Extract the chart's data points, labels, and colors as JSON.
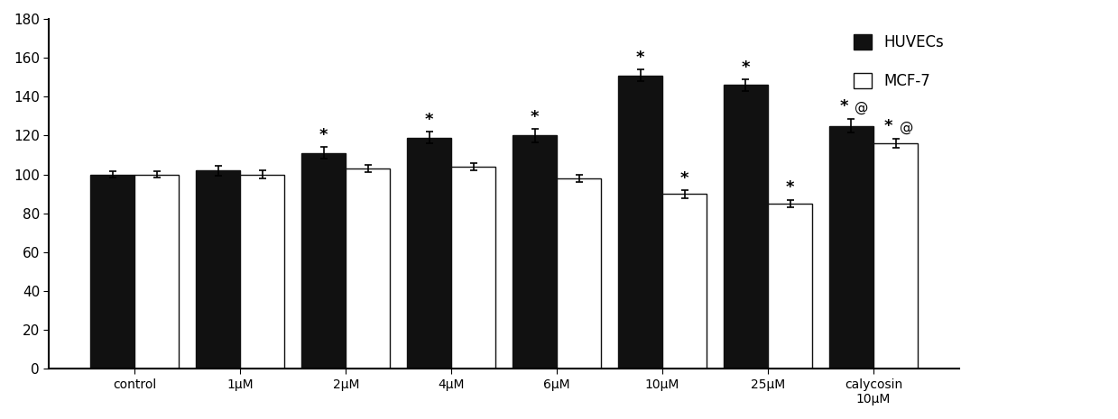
{
  "categories": [
    "control",
    "1μM",
    "2μM",
    "4μM",
    "6μM",
    "10μM",
    "25μM",
    "calycosin\n10μM"
  ],
  "huvecs_values": [
    100,
    102,
    111,
    119,
    120,
    151,
    146,
    125
  ],
  "mcf7_values": [
    100,
    100,
    103,
    104,
    98,
    90,
    85,
    116
  ],
  "huvecs_errors": [
    1.5,
    2.5,
    3,
    3,
    3.5,
    3,
    3,
    3.5
  ],
  "mcf7_errors": [
    1.5,
    2,
    2,
    2,
    2,
    2,
    2,
    2.5
  ],
  "huvecs_color": "#111111",
  "mcf7_color": "#ffffff",
  "bar_edge_color": "#111111",
  "ylim": [
    0,
    180
  ],
  "yticks": [
    0,
    20,
    40,
    60,
    80,
    100,
    120,
    140,
    160,
    180
  ],
  "legend_huvecs": "HUVECs",
  "legend_mcf7": "MCF-7",
  "bar_width": 0.42,
  "annotations_huvecs": [
    "",
    "",
    "*",
    "*",
    "*",
    "*",
    "*",
    "*@"
  ],
  "annotations_mcf7": [
    "",
    "",
    "",
    "",
    "",
    "*",
    "*",
    "*@"
  ],
  "figsize": [
    12.39,
    4.65
  ],
  "dpi": 100
}
